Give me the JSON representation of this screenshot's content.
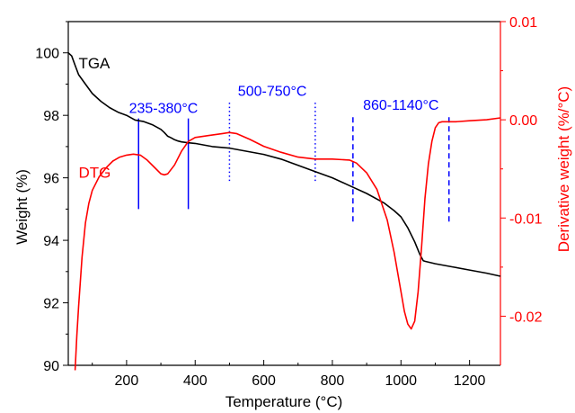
{
  "chart_data": {
    "type": "line",
    "xlabel": "Temperature (°C)",
    "ylabel_left": "Weight (%)",
    "ylabel_right": "Derivative weight (%/°C)",
    "xlim": [
      30,
      1290
    ],
    "ylim_left": [
      90,
      101
    ],
    "ylim_right": [
      -0.025,
      0.01
    ],
    "x_ticks": [
      200,
      400,
      600,
      800,
      1000,
      1200
    ],
    "y_left_ticks": [
      90,
      92,
      94,
      96,
      98,
      100
    ],
    "y_right_ticks": [
      {
        "value": 0.01,
        "label": "0.01"
      },
      {
        "value": 0.0,
        "label": "0.00"
      },
      {
        "value": -0.01,
        "label": "-0.01"
      },
      {
        "value": -0.02,
        "label": "-0.02"
      }
    ],
    "grid": false,
    "colors": {
      "TGA": "#000000",
      "DTG": "#ff0000",
      "annotation": "#0000ff",
      "axis": "#000000"
    },
    "series": [
      {
        "name": "TGA",
        "axis": "left",
        "label": "TGA",
        "x": [
          30,
          40,
          50,
          60,
          80,
          100,
          125,
          150,
          175,
          200,
          225,
          250,
          275,
          300,
          310,
          320,
          330,
          340,
          350,
          360,
          380,
          400,
          450,
          500,
          550,
          600,
          650,
          700,
          750,
          800,
          850,
          900,
          950,
          980,
          1000,
          1020,
          1040,
          1055,
          1065,
          1070,
          1100,
          1150,
          1200,
          1250,
          1290
        ],
        "y": [
          100.0,
          99.9,
          99.6,
          99.3,
          99.0,
          98.7,
          98.45,
          98.25,
          98.1,
          98.0,
          97.85,
          97.8,
          97.7,
          97.55,
          97.45,
          97.33,
          97.28,
          97.22,
          97.18,
          97.15,
          97.12,
          97.1,
          97.0,
          96.95,
          96.85,
          96.75,
          96.6,
          96.4,
          96.2,
          96.0,
          95.75,
          95.5,
          95.2,
          94.95,
          94.75,
          94.4,
          93.95,
          93.55,
          93.35,
          93.33,
          93.25,
          93.15,
          93.05,
          92.95,
          92.85
        ]
      },
      {
        "name": "DTG",
        "axis": "right",
        "label": "DTG",
        "x": [
          50,
          55,
          60,
          70,
          80,
          90,
          100,
          120,
          140,
          160,
          180,
          200,
          220,
          240,
          260,
          280,
          300,
          310,
          320,
          340,
          360,
          380,
          400,
          440,
          480,
          500,
          520,
          560,
          600,
          650,
          700,
          750,
          800,
          850,
          870,
          900,
          930,
          960,
          980,
          1000,
          1010,
          1020,
          1030,
          1040,
          1050,
          1060,
          1070,
          1080,
          1090,
          1100,
          1110,
          1120,
          1130,
          1140,
          1160,
          1200,
          1250,
          1290
        ],
        "y": [
          -0.0255,
          -0.022,
          -0.019,
          -0.014,
          -0.0105,
          -0.0085,
          -0.0072,
          -0.0058,
          -0.0049,
          -0.0042,
          -0.0038,
          -0.0036,
          -0.0035,
          -0.0036,
          -0.0041,
          -0.0048,
          -0.0055,
          -0.0056,
          -0.0055,
          -0.0046,
          -0.0032,
          -0.0022,
          -0.0018,
          -0.0016,
          -0.0014,
          -0.0013,
          -0.0014,
          -0.002,
          -0.0027,
          -0.0033,
          -0.0038,
          -0.004,
          -0.004,
          -0.0041,
          -0.0044,
          -0.0054,
          -0.0071,
          -0.0102,
          -0.0135,
          -0.0175,
          -0.0195,
          -0.0208,
          -0.0213,
          -0.0205,
          -0.0175,
          -0.013,
          -0.008,
          -0.0045,
          -0.0022,
          -0.0008,
          -0.0003,
          -0.0002,
          -0.0002,
          -0.0002,
          -0.0002,
          -0.0001,
          0.0,
          0.0002
        ]
      }
    ],
    "annotations": [
      {
        "label": "235-380°C",
        "lines": [
          235,
          380
        ],
        "style": "solid",
        "line_from": 95.0,
        "line_to": 97.9
      },
      {
        "label": "500-750°C",
        "lines": [
          500,
          750
        ],
        "style": "dotted",
        "line_from": 95.9,
        "line_to": 98.45
      },
      {
        "label": "860-1140°C",
        "lines": [
          860,
          1140
        ],
        "style": "dashed",
        "line_from": 94.6,
        "line_to": 98.0
      }
    ],
    "label_positions": {
      "TGA": {
        "x": 60,
        "y": 99.5
      },
      "DTG": {
        "x": 60,
        "y": 96.0
      }
    }
  }
}
